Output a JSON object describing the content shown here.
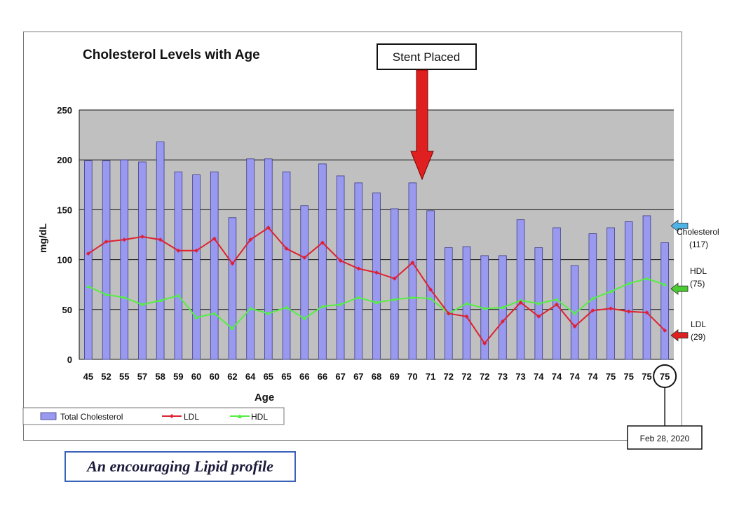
{
  "chart_data": {
    "type": "bar",
    "title": "Cholesterol Levels with Age",
    "xlabel": "Age",
    "ylabel": "mg/dL",
    "ylim": [
      0,
      250
    ],
    "yticks": [
      0,
      50,
      100,
      150,
      200,
      250
    ],
    "grid": true,
    "categories": [
      "45",
      "52",
      "55",
      "57",
      "58",
      "59",
      "60",
      "60",
      "62",
      "64",
      "65",
      "65",
      "66",
      "66",
      "67",
      "67",
      "68",
      "69",
      "70",
      "71",
      "72",
      "72",
      "72",
      "73",
      "73",
      "74",
      "74",
      "74",
      "74",
      "75",
      "75",
      "75",
      "75"
    ],
    "series": [
      {
        "name": "Total Cholesterol",
        "type": "bar",
        "color": "#9999f0",
        "values": [
          199,
          199,
          200,
          198,
          218,
          188,
          185,
          188,
          142,
          201,
          201,
          188,
          154,
          196,
          184,
          177,
          167,
          151,
          177,
          149,
          112,
          113,
          104,
          104,
          140,
          112,
          132,
          94,
          126,
          132,
          138,
          144,
          117
        ]
      },
      {
        "name": "LDL",
        "type": "line",
        "color": "#dd2233",
        "values": [
          106,
          118,
          120,
          123,
          120,
          109,
          109,
          121,
          96,
          120,
          132,
          111,
          102,
          117,
          99,
          91,
          87,
          81,
          97,
          70,
          46,
          43,
          16,
          38,
          57,
          43,
          55,
          33,
          49,
          51,
          48,
          47,
          29
        ]
      },
      {
        "name": "HDL",
        "type": "line",
        "color": "#55ee44",
        "values": [
          73,
          65,
          62,
          55,
          59,
          64,
          42,
          46,
          31,
          51,
          46,
          52,
          41,
          53,
          55,
          62,
          57,
          60,
          62,
          61,
          46,
          56,
          51,
          52,
          59,
          56,
          60,
          46,
          61,
          68,
          76,
          81,
          75
        ]
      }
    ],
    "annotations": {
      "stent": "Stent Placed",
      "date": "Feb 28, 2020",
      "cholesterol_label": "Cholesterol",
      "cholesterol_value": "(117)",
      "hdl_label": "HDL",
      "hdl_value": "(75)",
      "ldl_label": "LDL",
      "ldl_value": "(29)"
    },
    "legend_position": "bottom-left"
  },
  "caption": "An encouraging Lipid profile",
  "colors": {
    "plot_background": "#c0c0c0",
    "bar_fill": "#9999f0",
    "bar_stroke": "#3b3b88",
    "stent_arrow": "#e02020",
    "cholesterol_arrow": "#4fb3e8",
    "hdl_arrow": "#4ccc33",
    "ldl_arrow": "#e02020"
  }
}
